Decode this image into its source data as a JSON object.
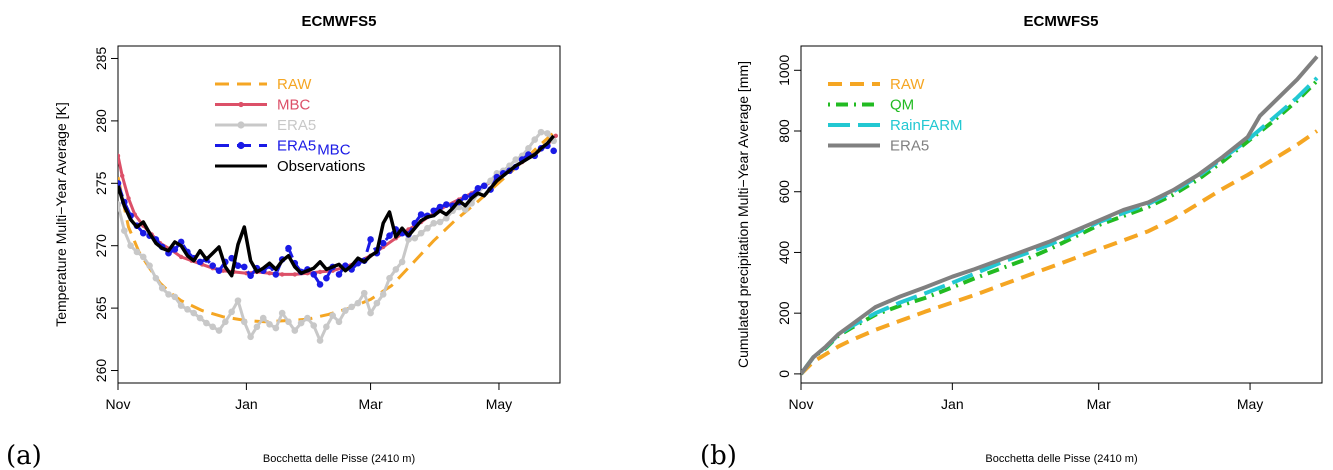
{
  "chart_data": [
    {
      "type": "line",
      "panel_label": "(a)",
      "title": "ECMWFS5",
      "ylabel": "Temperature Multi−Year Average [K]",
      "xlabel": "Bocchetta delle Pisse (2410 m)",
      "xlim": [
        0,
        210
      ],
      "ylim": [
        259,
        286
      ],
      "xticks": [
        {
          "value": 0,
          "label": "Nov"
        },
        {
          "value": 61,
          "label": "Jan"
        },
        {
          "value": 120,
          "label": "Mar"
        },
        {
          "value": 181,
          "label": "May"
        }
      ],
      "yticks": [
        260,
        265,
        270,
        275,
        280,
        285
      ],
      "legend_position": "top-left",
      "series": [
        {
          "name": "RAW",
          "legend_sub": "",
          "color": "#F5A623",
          "style": "dashed",
          "marker": "none",
          "x": [
            0,
            5,
            10,
            15,
            20,
            25,
            30,
            40,
            50,
            61,
            70,
            80,
            90,
            100,
            110,
            120,
            130,
            140,
            150,
            160,
            170,
            180,
            190,
            200,
            208
          ],
          "y": [
            275.5,
            271.5,
            269.5,
            268.2,
            267.0,
            266.2,
            265.6,
            264.8,
            264.3,
            264.0,
            263.9,
            264.0,
            264.1,
            264.5,
            265.0,
            265.7,
            266.8,
            268.6,
            270.4,
            272.0,
            273.4,
            274.9,
            276.4,
            278.0,
            279.2
          ]
        },
        {
          "name": "MBC",
          "legend_sub": "",
          "color": "#DC5068",
          "style": "solid",
          "marker": "plus",
          "x": [
            0,
            2,
            5,
            8,
            12,
            16,
            20,
            25,
            30,
            35,
            40,
            45,
            50,
            55,
            61,
            66,
            72,
            78,
            84,
            90,
            96,
            102,
            108,
            114,
            120,
            126,
            132,
            138,
            144,
            150,
            156,
            162,
            168,
            174,
            180,
            186,
            192,
            198,
            204,
            208
          ],
          "y": [
            277.2,
            275.6,
            273.8,
            272.5,
            271.6,
            270.9,
            270.2,
            269.7,
            269.1,
            268.8,
            268.5,
            268.2,
            268.0,
            267.9,
            267.8,
            267.9,
            267.8,
            267.7,
            267.7,
            267.8,
            267.9,
            268.0,
            268.3,
            268.7,
            269.2,
            269.9,
            270.6,
            271.3,
            271.9,
            272.6,
            273.2,
            273.7,
            274.2,
            274.8,
            275.4,
            276.0,
            276.7,
            277.3,
            278.1,
            278.8
          ]
        },
        {
          "name": "ERA5",
          "legend_sub": "",
          "color": "#C8C8C8",
          "style": "solid",
          "marker": "dot",
          "x": [
            0,
            3,
            6,
            9,
            12,
            15,
            18,
            21,
            24,
            27,
            30,
            33,
            36,
            39,
            42,
            45,
            48,
            51,
            54,
            57,
            60,
            63,
            66,
            69,
            72,
            75,
            78,
            81,
            84,
            87,
            90,
            93,
            96,
            99,
            102,
            105,
            108,
            111,
            114,
            117,
            120,
            123,
            126,
            129,
            132,
            135,
            138,
            141,
            144,
            147,
            150,
            153,
            156,
            159,
            162,
            165,
            168,
            171,
            174,
            177,
            180,
            183,
            186,
            189,
            192,
            195,
            198,
            201,
            204,
            207
          ],
          "y": [
            273.3,
            271.2,
            270.0,
            269.5,
            269.1,
            268.4,
            267.4,
            266.6,
            266.1,
            265.9,
            265.2,
            264.9,
            264.6,
            264.2,
            263.8,
            263.5,
            263.2,
            263.9,
            264.7,
            265.6,
            263.9,
            262.7,
            263.5,
            264.2,
            263.7,
            263.4,
            264.6,
            263.9,
            263.2,
            263.8,
            264.2,
            263.6,
            262.4,
            263.5,
            264.4,
            263.9,
            264.8,
            265.1,
            265.4,
            266.2,
            264.6,
            265.4,
            266.1,
            267.4,
            268.1,
            268.7,
            270.5,
            270.6,
            271.0,
            271.4,
            271.8,
            271.9,
            272.2,
            272.8,
            273.1,
            272.9,
            273.4,
            274.2,
            274.8,
            275.2,
            275.8,
            276.0,
            276.4,
            276.9,
            277.2,
            277.8,
            278.5,
            279.1,
            279.0,
            278.4
          ]
        },
        {
          "name": "ERA5",
          "legend_sub": "MBC",
          "color": "#1A1AE6",
          "style": "dashed",
          "marker": "dot",
          "x": [
            0,
            3,
            6,
            9,
            12,
            15,
            18,
            21,
            24,
            27,
            30,
            33,
            36,
            39,
            42,
            45,
            48,
            51,
            54,
            57,
            60,
            63,
            66,
            69,
            72,
            75,
            78,
            81,
            84,
            87,
            90,
            93,
            96,
            99,
            102,
            105,
            108,
            111,
            114,
            117,
            120,
            123,
            126,
            129,
            132,
            135,
            138,
            141,
            144,
            147,
            150,
            153,
            156,
            159,
            162,
            165,
            168,
            171,
            174,
            177,
            180,
            183,
            186,
            189,
            192,
            195,
            198,
            201,
            204,
            207
          ],
          "y": [
            275.0,
            273.5,
            272.4,
            271.6,
            271.0,
            270.8,
            270.5,
            269.9,
            269.4,
            269.7,
            270.3,
            269.5,
            269.0,
            268.7,
            268.9,
            268.4,
            268.0,
            268.7,
            269.0,
            268.4,
            268.3,
            267.6,
            268.2,
            268.0,
            268.4,
            267.7,
            268.9,
            269.8,
            268.6,
            267.9,
            268.1,
            267.7,
            266.9,
            267.4,
            268.3,
            267.7,
            268.4,
            268.1,
            268.6,
            268.8,
            270.5,
            269.4,
            270.2,
            270.8,
            271.3,
            271.0,
            270.9,
            271.8,
            272.5,
            272.4,
            272.8,
            273.1,
            273.3,
            273.2,
            273.5,
            273.9,
            274.0,
            274.6,
            274.8,
            274.5,
            275.5,
            275.8,
            276.0,
            276.3,
            276.9,
            277.3,
            277.2,
            277.8,
            278.0,
            277.6
          ]
        },
        {
          "name": "Observations",
          "legend_sub": "",
          "color": "#000000",
          "style": "solid",
          "marker": "none",
          "x": [
            0,
            3,
            6,
            9,
            12,
            15,
            18,
            21,
            24,
            27,
            30,
            33,
            36,
            39,
            42,
            45,
            48,
            51,
            54,
            57,
            60,
            63,
            66,
            69,
            72,
            75,
            78,
            81,
            84,
            87,
            90,
            93,
            96,
            99,
            102,
            105,
            108,
            111,
            114,
            117,
            120,
            123,
            126,
            129,
            132,
            135,
            138,
            141,
            144,
            147,
            150,
            153,
            156,
            159,
            162,
            165,
            168,
            171,
            174,
            177,
            180,
            183,
            186,
            189,
            192,
            195,
            198,
            201,
            204,
            207
          ],
          "y": [
            274.8,
            273.2,
            272.1,
            271.5,
            271.9,
            271.0,
            270.2,
            269.8,
            269.6,
            270.3,
            270.0,
            269.2,
            268.8,
            269.6,
            268.9,
            269.4,
            269.9,
            268.3,
            267.6,
            270.1,
            271.5,
            268.8,
            267.9,
            268.2,
            268.6,
            268.1,
            268.8,
            269.2,
            268.3,
            267.8,
            268.0,
            268.2,
            268.7,
            268.1,
            268.3,
            268.5,
            268.0,
            268.4,
            269.0,
            268.7,
            269.2,
            269.5,
            271.8,
            272.7,
            270.7,
            271.4,
            270.8,
            271.4,
            272.0,
            272.3,
            272.4,
            272.8,
            272.5,
            273.0,
            273.6,
            273.2,
            273.8,
            274.2,
            274.0,
            274.6,
            275.2,
            275.6,
            276.0,
            276.4,
            276.7,
            277.0,
            277.3,
            277.8,
            278.2,
            278.8
          ]
        }
      ]
    },
    {
      "type": "line",
      "panel_label": "(b)",
      "title": "ECMWFS5",
      "ylabel": "Cumulated precipitation Multi−Year Average [mm]",
      "xlabel": "Bocchetta delle Pisse (2410 m)",
      "xlim": [
        0,
        210
      ],
      "ylim": [
        -30,
        1080
      ],
      "xticks": [
        {
          "value": 0,
          "label": "Nov"
        },
        {
          "value": 61,
          "label": "Jan"
        },
        {
          "value": 120,
          "label": "Mar"
        },
        {
          "value": 181,
          "label": "May"
        }
      ],
      "yticks": [
        0,
        200,
        400,
        600,
        800,
        1000
      ],
      "legend_position": "top-left",
      "series": [
        {
          "name": "RAW",
          "legend_sub": "",
          "color": "#F5A623",
          "style": "dashed",
          "marker": "none",
          "x": [
            0,
            5,
            10,
            15,
            20,
            30,
            40,
            50,
            61,
            70,
            80,
            90,
            100,
            110,
            120,
            130,
            140,
            150,
            160,
            170,
            180,
            190,
            200,
            208
          ],
          "y": [
            0,
            40,
            65,
            90,
            110,
            145,
            175,
            205,
            235,
            260,
            290,
            320,
            350,
            380,
            410,
            440,
            470,
            510,
            560,
            610,
            655,
            705,
            755,
            800
          ]
        },
        {
          "name": "QM",
          "legend_sub": "",
          "color": "#22BB22",
          "style": "dotdash",
          "marker": "none",
          "x": [
            0,
            5,
            10,
            15,
            20,
            30,
            40,
            50,
            61,
            70,
            80,
            90,
            100,
            110,
            120,
            130,
            140,
            150,
            160,
            170,
            180,
            190,
            200,
            208
          ],
          "y": [
            0,
            55,
            85,
            125,
            150,
            195,
            225,
            250,
            285,
            315,
            345,
            375,
            410,
            450,
            490,
            520,
            550,
            590,
            640,
            700,
            765,
            830,
            900,
            965
          ]
        },
        {
          "name": "RainFARM",
          "legend_sub": "",
          "color": "#22C8D2",
          "style": "longdash",
          "marker": "none",
          "x": [
            0,
            5,
            10,
            15,
            20,
            30,
            40,
            50,
            61,
            70,
            80,
            90,
            100,
            110,
            120,
            130,
            140,
            150,
            160,
            170,
            180,
            190,
            200,
            208
          ],
          "y": [
            0,
            55,
            88,
            128,
            155,
            200,
            235,
            265,
            300,
            330,
            365,
            395,
            425,
            460,
            500,
            530,
            560,
            600,
            650,
            710,
            770,
            840,
            910,
            975
          ]
        },
        {
          "name": "ERA5",
          "legend_sub": "",
          "color": "#808080",
          "style": "solid",
          "marker": "none",
          "x": [
            0,
            5,
            10,
            15,
            20,
            30,
            40,
            50,
            61,
            70,
            80,
            90,
            100,
            110,
            120,
            130,
            140,
            150,
            160,
            170,
            180,
            185,
            190,
            200,
            208
          ],
          "y": [
            0,
            55,
            90,
            130,
            160,
            220,
            255,
            285,
            320,
            345,
            375,
            405,
            435,
            470,
            505,
            540,
            565,
            605,
            655,
            715,
            780,
            850,
            890,
            970,
            1045
          ]
        }
      ]
    }
  ]
}
